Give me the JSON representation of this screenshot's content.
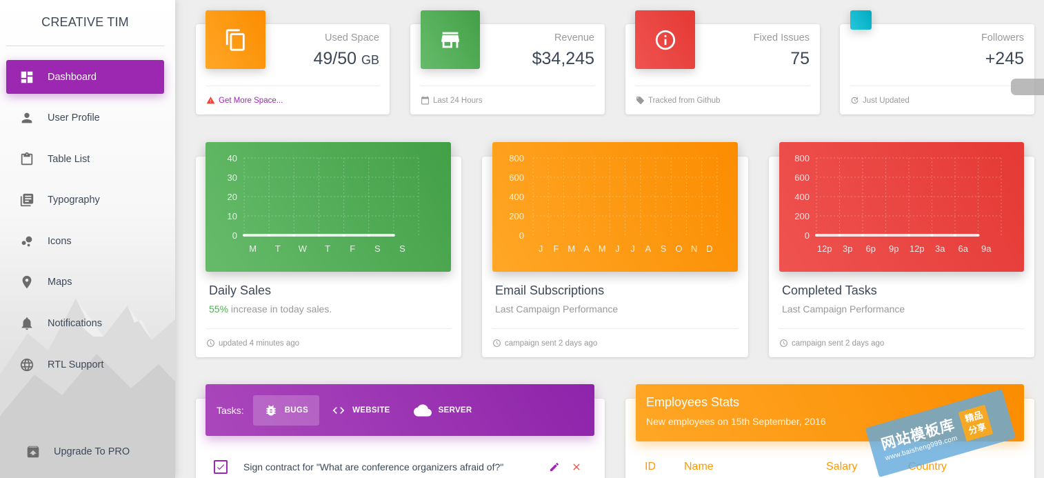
{
  "sidebar": {
    "logo": "CREATIVE TIM",
    "items": [
      {
        "label": "Dashboard",
        "icon": "dashboard-icon",
        "active": true
      },
      {
        "label": "User Profile",
        "icon": "person-icon"
      },
      {
        "label": "Table List",
        "icon": "clipboard-icon"
      },
      {
        "label": "Typography",
        "icon": "library-books-icon"
      },
      {
        "label": "Icons",
        "icon": "bubble-chart-icon"
      },
      {
        "label": "Maps",
        "icon": "location-pin-icon"
      },
      {
        "label": "Notifications",
        "icon": "bell-icon"
      },
      {
        "label": "RTL Support",
        "icon": "globe-icon"
      }
    ],
    "upgrade": {
      "label": "Upgrade To PRO",
      "icon": "unarchive-icon"
    }
  },
  "stats": [
    {
      "category": "Used Space",
      "value": "49/50",
      "unit": "GB",
      "footer": "Get More Space...",
      "footer_icon": "warning-icon",
      "color": "#fb8c00",
      "footer_color": "#9c27b0"
    },
    {
      "category": "Revenue",
      "value": "$34,245",
      "unit": "",
      "footer": "Last 24 Hours",
      "footer_icon": "calendar-icon",
      "color": "#43a047"
    },
    {
      "category": "Fixed Issues",
      "value": "75",
      "unit": "",
      "footer": "Tracked from Github",
      "footer_icon": "tag-icon",
      "color": "#e53935"
    },
    {
      "category": "Followers",
      "value": "+245",
      "unit": "",
      "footer": "Just Updated",
      "footer_icon": "update-icon",
      "color": "#00acc1"
    }
  ],
  "charts": [
    {
      "title": "Daily Sales",
      "subtitle_highlight": "55%",
      "subtitle": " increase in today sales.",
      "footer": "updated 4 minutes ago",
      "footer_icon": "clock-icon",
      "color": "#4caf50"
    },
    {
      "title": "Email Subscriptions",
      "subtitle_highlight": "",
      "subtitle": "Last Campaign Performance",
      "footer": "campaign sent 2 days ago",
      "footer_icon": "clock-icon",
      "color": "#ff9800"
    },
    {
      "title": "Completed Tasks",
      "subtitle_highlight": "",
      "subtitle": "Last Campaign Performance",
      "footer": "campaign sent 2 days ago",
      "footer_icon": "clock-icon",
      "color": "#e53935"
    }
  ],
  "chart_data": [
    {
      "type": "line",
      "categories": [
        "M",
        "T",
        "W",
        "T",
        "F",
        "S",
        "S"
      ],
      "yticks": [
        40,
        30,
        20,
        10,
        0
      ],
      "ylim": [
        0,
        40
      ],
      "series": [
        {
          "values": [
            0,
            0,
            0,
            0,
            0,
            0,
            0
          ]
        }
      ],
      "grid": true
    },
    {
      "type": "bar",
      "categories": [
        "J",
        "F",
        "M",
        "A",
        "M",
        "J",
        "J",
        "A",
        "S",
        "O",
        "N",
        "D"
      ],
      "yticks": [
        800,
        600,
        400,
        200,
        0
      ],
      "ylim": [
        0,
        800
      ],
      "series": [
        {
          "values": [
            0,
            0,
            0,
            0,
            0,
            0,
            0,
            0,
            0,
            0,
            0,
            0
          ]
        }
      ],
      "grid": true
    },
    {
      "type": "line",
      "categories": [
        "12p",
        "3p",
        "6p",
        "9p",
        "12p",
        "3a",
        "6a",
        "9a"
      ],
      "yticks": [
        800,
        600,
        400,
        200,
        0
      ],
      "ylim": [
        0,
        800
      ],
      "series": [
        {
          "values": [
            0,
            0,
            0,
            0,
            0,
            0,
            0,
            0
          ]
        }
      ],
      "grid": true
    }
  ],
  "tasks": {
    "label": "Tasks:",
    "tabs": [
      {
        "label": "BUGS",
        "icon": "bug-icon",
        "active": true
      },
      {
        "label": "WEBSITE",
        "icon": "code-icon"
      },
      {
        "label": "SERVER",
        "icon": "cloud-icon"
      }
    ],
    "rows": [
      {
        "text": "Sign contract for \"What are conference organizers afraid of?\"",
        "checked": true
      }
    ]
  },
  "employees": {
    "title": "Employees Stats",
    "subtitle": "New employees on 15th September, 2016",
    "columns": [
      "ID",
      "Name",
      "Salary",
      "Country"
    ]
  },
  "watermark": {
    "text": "网站模板库",
    "url": "www.baisheng999.com",
    "badge_line1": "精品",
    "badge_line2": "分享"
  }
}
